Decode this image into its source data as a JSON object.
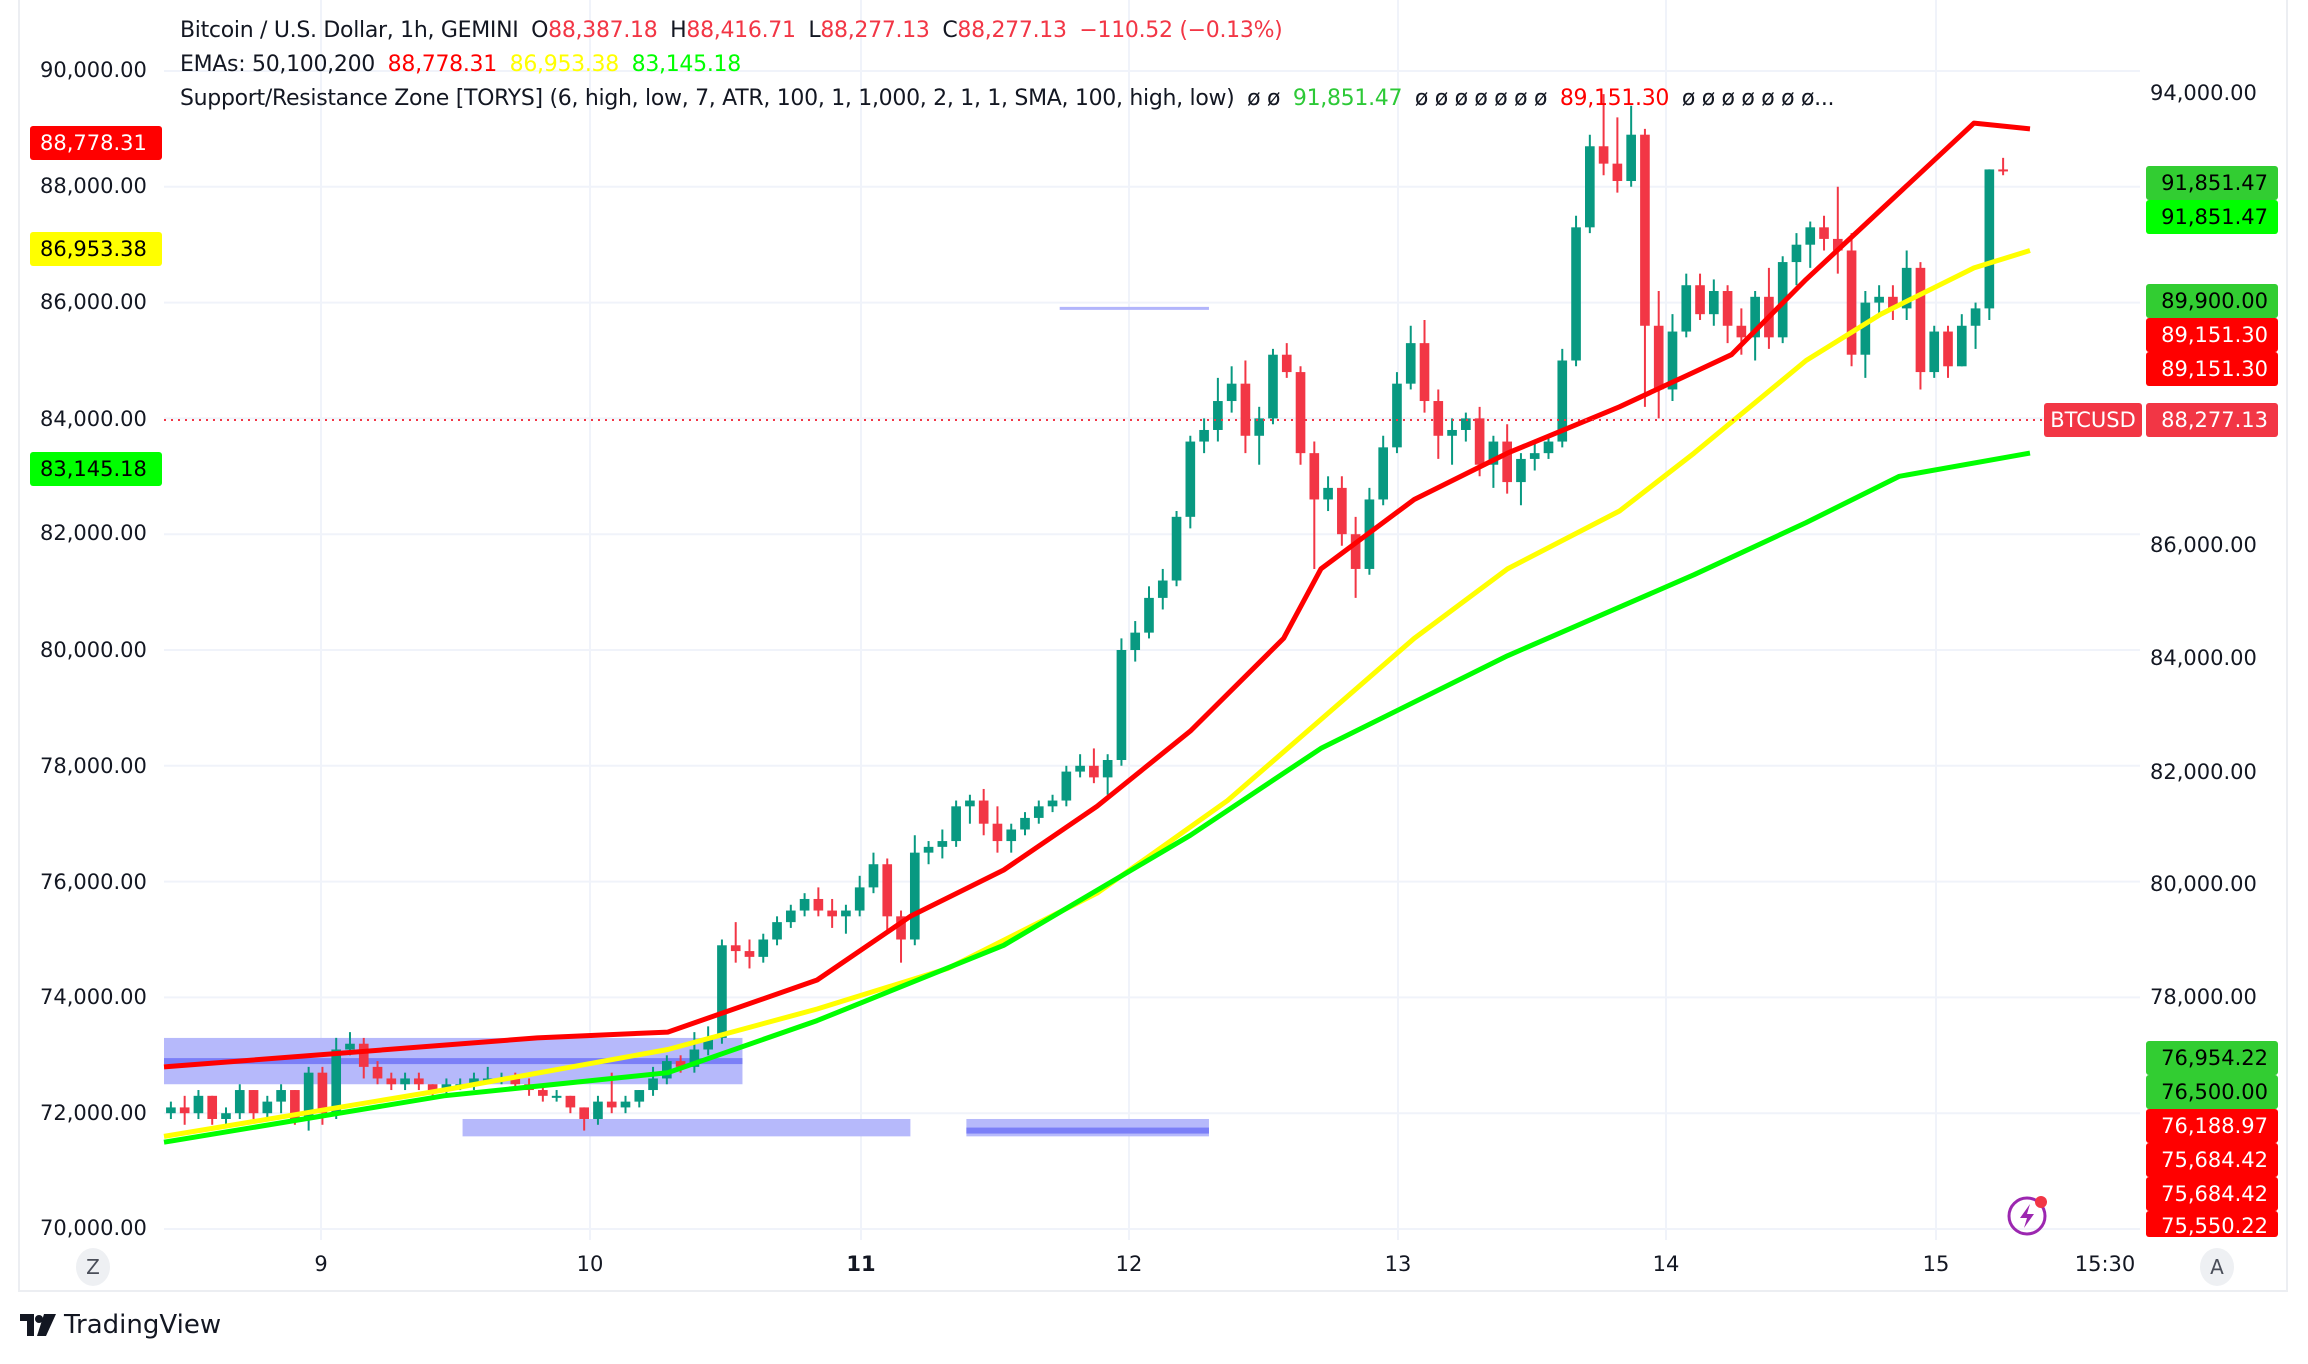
{
  "legend": {
    "symbol": "Bitcoin / U.S. Dollar, 1h, GEMINI",
    "open_label": "O",
    "open": "88,387.18",
    "high_label": "H",
    "high": "88,416.71",
    "low_label": "L",
    "low": "88,277.13",
    "close_label": "C",
    "close": "88,277.13",
    "change": "−110.52 (−0.13%)",
    "ema_label": "EMAs: 50,100,200",
    "ema50": "88,778.31",
    "ema100": "86,953.38",
    "ema200": "83,145.18",
    "sr_label": "Support/Resistance Zone [TORYS] (6, high, low, 7, ATR, 100, 1, 1,000, 2, 1, 1, SMA, 100, high, low)",
    "sr_values_prefix": "ø  ø",
    "sr_value_green": "91,851.47",
    "sr_values_mid": "ø  ø  ø  ø  ø  ø  ø",
    "sr_value_red": "89,151.30",
    "sr_values_suffix": "ø  ø  ø  ø  ø  ø  ø..."
  },
  "left_axis": {
    "labels": [
      "90,000.00",
      "88,000.00",
      "86,000.00",
      "84,000.00",
      "82,000.00",
      "80,000.00",
      "78,000.00",
      "76,000.00",
      "74,000.00",
      "72,000.00",
      "70,000.00"
    ],
    "tags": {
      "ema50": "88,778.31",
      "ema100": "86,953.38",
      "ema200": "83,145.18"
    }
  },
  "right_axis": {
    "labels": [
      "94,000.00",
      "86,000.00",
      "84,000.00",
      "82,000.00",
      "80,000.00",
      "78,000.00"
    ],
    "tags": [
      {
        "value": "91,851.47",
        "bg": "#32cd32",
        "fg": "#000000"
      },
      {
        "value": "91,851.47",
        "bg": "#00ff00",
        "fg": "#000000"
      },
      {
        "value": "89,900.00",
        "bg": "#32cd32",
        "fg": "#000000"
      },
      {
        "value": "89,151.30",
        "bg": "#ff0000",
        "fg": "#ffffff"
      },
      {
        "value": "89,151.30",
        "bg": "#ff0000",
        "fg": "#ffffff"
      },
      {
        "value": "88,277.13",
        "bg": "#f23645",
        "fg": "#ffffff"
      },
      {
        "value": "76,954.22",
        "bg": "#32cd32",
        "fg": "#000000"
      },
      {
        "value": "76,500.00",
        "bg": "#32cd32",
        "fg": "#000000"
      },
      {
        "value": "76,188.97",
        "bg": "#ff0000",
        "fg": "#ffffff"
      },
      {
        "value": "75,684.42",
        "bg": "#ff0000",
        "fg": "#ffffff"
      },
      {
        "value": "75,684.42",
        "bg": "#ff0000",
        "fg": "#ffffff"
      },
      {
        "value": "75,550.22",
        "bg": "#ff0000",
        "fg": "#ffffff"
      }
    ],
    "symbol_tag": "BTCUSD"
  },
  "time_axis": {
    "labels": [
      "9",
      "10",
      "11",
      "12",
      "13",
      "14",
      "15",
      "15:30"
    ],
    "left_button": "Z",
    "right_button": "A"
  },
  "brand": {
    "name": "TradingView"
  },
  "colors": {
    "up": "#089981",
    "down": "#f23645",
    "ema50": "#ff0000",
    "ema100": "#ffff00",
    "ema200": "#00ff00",
    "zone": "#b2b5fb",
    "zone_line": "#7b7ff7"
  },
  "chart_data": {
    "type": "candlestick",
    "title": "Bitcoin / U.S. Dollar, 1h, GEMINI",
    "x_ticks": [
      "9",
      "10",
      "11",
      "12",
      "13",
      "14",
      "15",
      "15:30"
    ],
    "left_ylim": [
      70000,
      90000
    ],
    "right_ylim": [
      76000,
      94000
    ],
    "last_close": 88277.13,
    "series": [
      {
        "name": "EMA 50",
        "color": "#ff0000",
        "last": 88778.31,
        "points_left_scale": [
          [
            0,
            72800
          ],
          [
            0.2,
            73300
          ],
          [
            0.27,
            73400
          ],
          [
            0.35,
            74300
          ],
          [
            0.4,
            75400
          ],
          [
            0.45,
            76200
          ],
          [
            0.5,
            77300
          ],
          [
            0.55,
            78600
          ],
          [
            0.6,
            80200
          ],
          [
            0.62,
            81400
          ],
          [
            0.67,
            82600
          ],
          [
            0.72,
            83400
          ],
          [
            0.78,
            84200
          ],
          [
            0.82,
            84800
          ],
          [
            0.84,
            85100
          ],
          [
            0.88,
            86400
          ],
          [
            0.92,
            87600
          ],
          [
            0.97,
            89100
          ],
          [
            1.0,
            89000
          ]
        ]
      },
      {
        "name": "EMA 100",
        "color": "#ffff00",
        "last": 86953.38,
        "points_left_scale": [
          [
            0,
            71600
          ],
          [
            0.15,
            72400
          ],
          [
            0.27,
            73100
          ],
          [
            0.35,
            73800
          ],
          [
            0.42,
            74500
          ],
          [
            0.5,
            75800
          ],
          [
            0.57,
            77400
          ],
          [
            0.62,
            78800
          ],
          [
            0.67,
            80200
          ],
          [
            0.72,
            81400
          ],
          [
            0.78,
            82400
          ],
          [
            0.82,
            83400
          ],
          [
            0.88,
            85000
          ],
          [
            0.92,
            85800
          ],
          [
            0.97,
            86600
          ],
          [
            1.0,
            86900
          ]
        ]
      },
      {
        "name": "EMA 200",
        "color": "#00ff00",
        "last": 83145.18,
        "points_left_scale": [
          [
            0,
            71500
          ],
          [
            0.15,
            72300
          ],
          [
            0.27,
            72700
          ],
          [
            0.35,
            73600
          ],
          [
            0.45,
            74900
          ],
          [
            0.55,
            76800
          ],
          [
            0.62,
            78300
          ],
          [
            0.72,
            79900
          ],
          [
            0.82,
            81300
          ],
          [
            0.88,
            82200
          ],
          [
            0.93,
            83000
          ],
          [
            1.0,
            83400
          ]
        ]
      }
    ],
    "sr_zones": [
      {
        "top": 73300,
        "bottom": 72500,
        "from": 0.0,
        "to": 0.31,
        "line": 72900
      },
      {
        "top": 71900,
        "bottom": 71600,
        "from": 0.16,
        "to": 0.4
      },
      {
        "top": 71900,
        "bottom": 71600,
        "from": 0.43,
        "to": 0.56,
        "line": 71700
      },
      {
        "line_only": 85900,
        "from": 0.48,
        "to": 0.56
      }
    ],
    "candles_ohlc_approx": [
      [
        72000,
        72200,
        71900,
        72100
      ],
      [
        72100,
        72300,
        71800,
        72000
      ],
      [
        72000,
        72400,
        71900,
        72300
      ],
      [
        72300,
        72300,
        71800,
        71900
      ],
      [
        71900,
        72100,
        71800,
        72000
      ],
      [
        72000,
        72500,
        71900,
        72400
      ],
      [
        72400,
        72400,
        71900,
        72000
      ],
      [
        72000,
        72300,
        71900,
        72200
      ],
      [
        72200,
        72500,
        72000,
        72400
      ],
      [
        72400,
        72400,
        71800,
        71900
      ],
      [
        71900,
        72800,
        71700,
        72700
      ],
      [
        72700,
        72800,
        71800,
        72000
      ],
      [
        72000,
        73300,
        71900,
        73100
      ],
      [
        73100,
        73400,
        73000,
        73200
      ],
      [
        73200,
        73300,
        72600,
        72800
      ],
      [
        72800,
        72900,
        72500,
        72600
      ],
      [
        72600,
        72700,
        72400,
        72500
      ],
      [
        72500,
        72700,
        72400,
        72600
      ],
      [
        72600,
        72700,
        72400,
        72500
      ],
      [
        72500,
        72500,
        72300,
        72400
      ],
      [
        72400,
        72600,
        72300,
        72500
      ],
      [
        72500,
        72600,
        72400,
        72500
      ],
      [
        72500,
        72700,
        72400,
        72600
      ],
      [
        72600,
        72800,
        72500,
        72600
      ],
      [
        72600,
        72700,
        72500,
        72600
      ],
      [
        72600,
        72700,
        72400,
        72500
      ],
      [
        72500,
        72600,
        72300,
        72400
      ],
      [
        72400,
        72500,
        72200,
        72300
      ],
      [
        72300,
        72400,
        72200,
        72300
      ],
      [
        72300,
        72300,
        72000,
        72100
      ],
      [
        72100,
        72100,
        71700,
        71900
      ],
      [
        71900,
        72300,
        71800,
        72200
      ],
      [
        72200,
        72700,
        72000,
        72100
      ],
      [
        72100,
        72300,
        72000,
        72200
      ],
      [
        72200,
        72400,
        72100,
        72400
      ],
      [
        72400,
        72800,
        72300,
        72600
      ],
      [
        72600,
        73000,
        72500,
        72900
      ],
      [
        72900,
        73000,
        72700,
        72800
      ],
      [
        72800,
        73400,
        72700,
        73100
      ],
      [
        73100,
        73500,
        73000,
        73300
      ],
      [
        73300,
        75000,
        73200,
        74900
      ],
      [
        74900,
        75300,
        74600,
        74800
      ],
      [
        74800,
        75000,
        74500,
        74700
      ],
      [
        74700,
        75100,
        74600,
        75000
      ],
      [
        75000,
        75400,
        74900,
        75300
      ],
      [
        75300,
        75600,
        75200,
        75500
      ],
      [
        75500,
        75800,
        75400,
        75700
      ],
      [
        75700,
        75900,
        75400,
        75500
      ],
      [
        75500,
        75700,
        75200,
        75400
      ],
      [
        75400,
        75600,
        75100,
        75500
      ],
      [
        75500,
        76100,
        75400,
        75900
      ],
      [
        75900,
        76500,
        75800,
        76300
      ],
      [
        76300,
        76400,
        75100,
        75400
      ],
      [
        75400,
        75500,
        74600,
        75000
      ],
      [
        75000,
        76800,
        74900,
        76500
      ],
      [
        76500,
        76700,
        76300,
        76600
      ],
      [
        76600,
        76900,
        76400,
        76700
      ],
      [
        76700,
        77400,
        76600,
        77300
      ],
      [
        77300,
        77500,
        77000,
        77400
      ],
      [
        77400,
        77600,
        76800,
        77000
      ],
      [
        77000,
        77300,
        76500,
        76700
      ],
      [
        76700,
        77000,
        76500,
        76900
      ],
      [
        76900,
        77200,
        76800,
        77100
      ],
      [
        77100,
        77400,
        77000,
        77300
      ],
      [
        77300,
        77500,
        77200,
        77400
      ],
      [
        77400,
        78000,
        77300,
        77900
      ],
      [
        77900,
        78200,
        77800,
        78000
      ],
      [
        78000,
        78300,
        77700,
        77800
      ],
      [
        77800,
        78200,
        77500,
        78100
      ],
      [
        78100,
        80200,
        78000,
        80000
      ],
      [
        80000,
        80500,
        79800,
        80300
      ],
      [
        80300,
        81100,
        80200,
        80900
      ],
      [
        80900,
        81400,
        80700,
        81200
      ],
      [
        81200,
        82400,
        81100,
        82300
      ],
      [
        82300,
        83700,
        82100,
        83600
      ],
      [
        83600,
        84000,
        83400,
        83800
      ],
      [
        83800,
        84700,
        83600,
        84300
      ],
      [
        84300,
        84900,
        84100,
        84600
      ],
      [
        84600,
        85000,
        83400,
        83700
      ],
      [
        83700,
        84200,
        83200,
        84000
      ],
      [
        84000,
        85200,
        83900,
        85100
      ],
      [
        85100,
        85300,
        84700,
        84800
      ],
      [
        84800,
        84900,
        83200,
        83400
      ],
      [
        83400,
        83600,
        81400,
        82600
      ],
      [
        82600,
        83000,
        82400,
        82800
      ],
      [
        82800,
        83000,
        81800,
        82000
      ],
      [
        82000,
        82300,
        80900,
        81400
      ],
      [
        81400,
        82800,
        81300,
        82600
      ],
      [
        82600,
        83700,
        82500,
        83500
      ],
      [
        83500,
        84800,
        83400,
        84600
      ],
      [
        84600,
        85600,
        84500,
        85300
      ],
      [
        85300,
        85700,
        84100,
        84300
      ],
      [
        84300,
        84500,
        83300,
        83700
      ],
      [
        83700,
        84000,
        83200,
        83800
      ],
      [
        83800,
        84100,
        83600,
        84000
      ],
      [
        84000,
        84200,
        83000,
        83200
      ],
      [
        83200,
        83700,
        82800,
        83600
      ],
      [
        83600,
        83900,
        82700,
        82900
      ],
      [
        82900,
        83400,
        82500,
        83300
      ],
      [
        83300,
        83600,
        83100,
        83400
      ],
      [
        83400,
        83700,
        83300,
        83600
      ],
      [
        83600,
        85200,
        83500,
        85000
      ],
      [
        85000,
        87500,
        84900,
        87300
      ],
      [
        87300,
        88900,
        87200,
        88700
      ],
      [
        88700,
        89600,
        88200,
        88400
      ],
      [
        88400,
        89200,
        87900,
        88100
      ],
      [
        88100,
        89400,
        88000,
        88900
      ],
      [
        88900,
        89000,
        84200,
        85600
      ],
      [
        85600,
        86200,
        84000,
        84500
      ],
      [
        84500,
        85800,
        84300,
        85500
      ],
      [
        85500,
        86500,
        85400,
        86300
      ],
      [
        86300,
        86500,
        85700,
        85800
      ],
      [
        85800,
        86400,
        85600,
        86200
      ],
      [
        86200,
        86300,
        85300,
        85600
      ],
      [
        85600,
        85900,
        85100,
        85400
      ],
      [
        85400,
        86200,
        85000,
        86100
      ],
      [
        86100,
        86600,
        85200,
        85400
      ],
      [
        85400,
        86800,
        85300,
        86700
      ],
      [
        86700,
        87200,
        86300,
        87000
      ],
      [
        87000,
        87400,
        86600,
        87300
      ],
      [
        87300,
        87500,
        86900,
        87100
      ],
      [
        87100,
        88000,
        86500,
        86900
      ],
      [
        86900,
        87200,
        84900,
        85100
      ],
      [
        85100,
        86200,
        84700,
        86000
      ],
      [
        86000,
        86300,
        85800,
        86100
      ],
      [
        86100,
        86300,
        85700,
        85900
      ],
      [
        85900,
        86900,
        85700,
        86600
      ],
      [
        86600,
        86700,
        84500,
        84800
      ],
      [
        84800,
        85600,
        84700,
        85500
      ],
      [
        85500,
        85600,
        84700,
        84900
      ],
      [
        84900,
        85800,
        84900,
        85600
      ],
      [
        85600,
        86000,
        85200,
        85900
      ],
      [
        85900,
        88300,
        85700,
        88300
      ],
      [
        88300,
        88500,
        88200,
        88277.13
      ]
    ]
  }
}
